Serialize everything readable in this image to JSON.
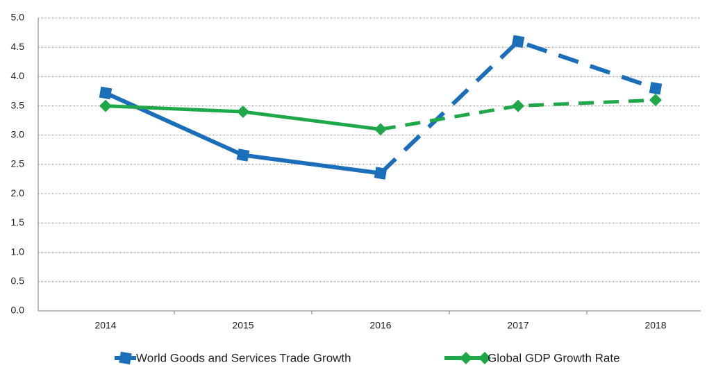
{
  "chart_data": {
    "type": "line",
    "categories": [
      "2014",
      "2015",
      "2016",
      "2017",
      "2018"
    ],
    "series": [
      {
        "name": "World Goods and Services Trade Growth",
        "color": "#1b6fba",
        "marker": "square",
        "values": [
          3.72,
          2.66,
          2.35,
          4.6,
          3.8
        ]
      },
      {
        "name": "Global GDP Growth Rate",
        "color": "#1ea84a",
        "marker": "diamond",
        "values": [
          3.5,
          3.4,
          3.1,
          3.5,
          3.6
        ]
      }
    ],
    "dashed_from": "2016",
    "ylim": [
      0,
      5
    ],
    "yticks": [
      {
        "value": 0,
        "label": "0.0"
      },
      0.5,
      {
        "value": 1,
        "label": "1.0"
      },
      1.5,
      {
        "value": 2,
        "label": "2.0"
      },
      2.5,
      {
        "value": 3,
        "label": "3.0"
      },
      3.5,
      {
        "value": 4,
        "label": "4.0"
      },
      4.5,
      {
        "value": 5,
        "label": "5.0"
      }
    ],
    "grid": true,
    "legend": "bottom"
  }
}
